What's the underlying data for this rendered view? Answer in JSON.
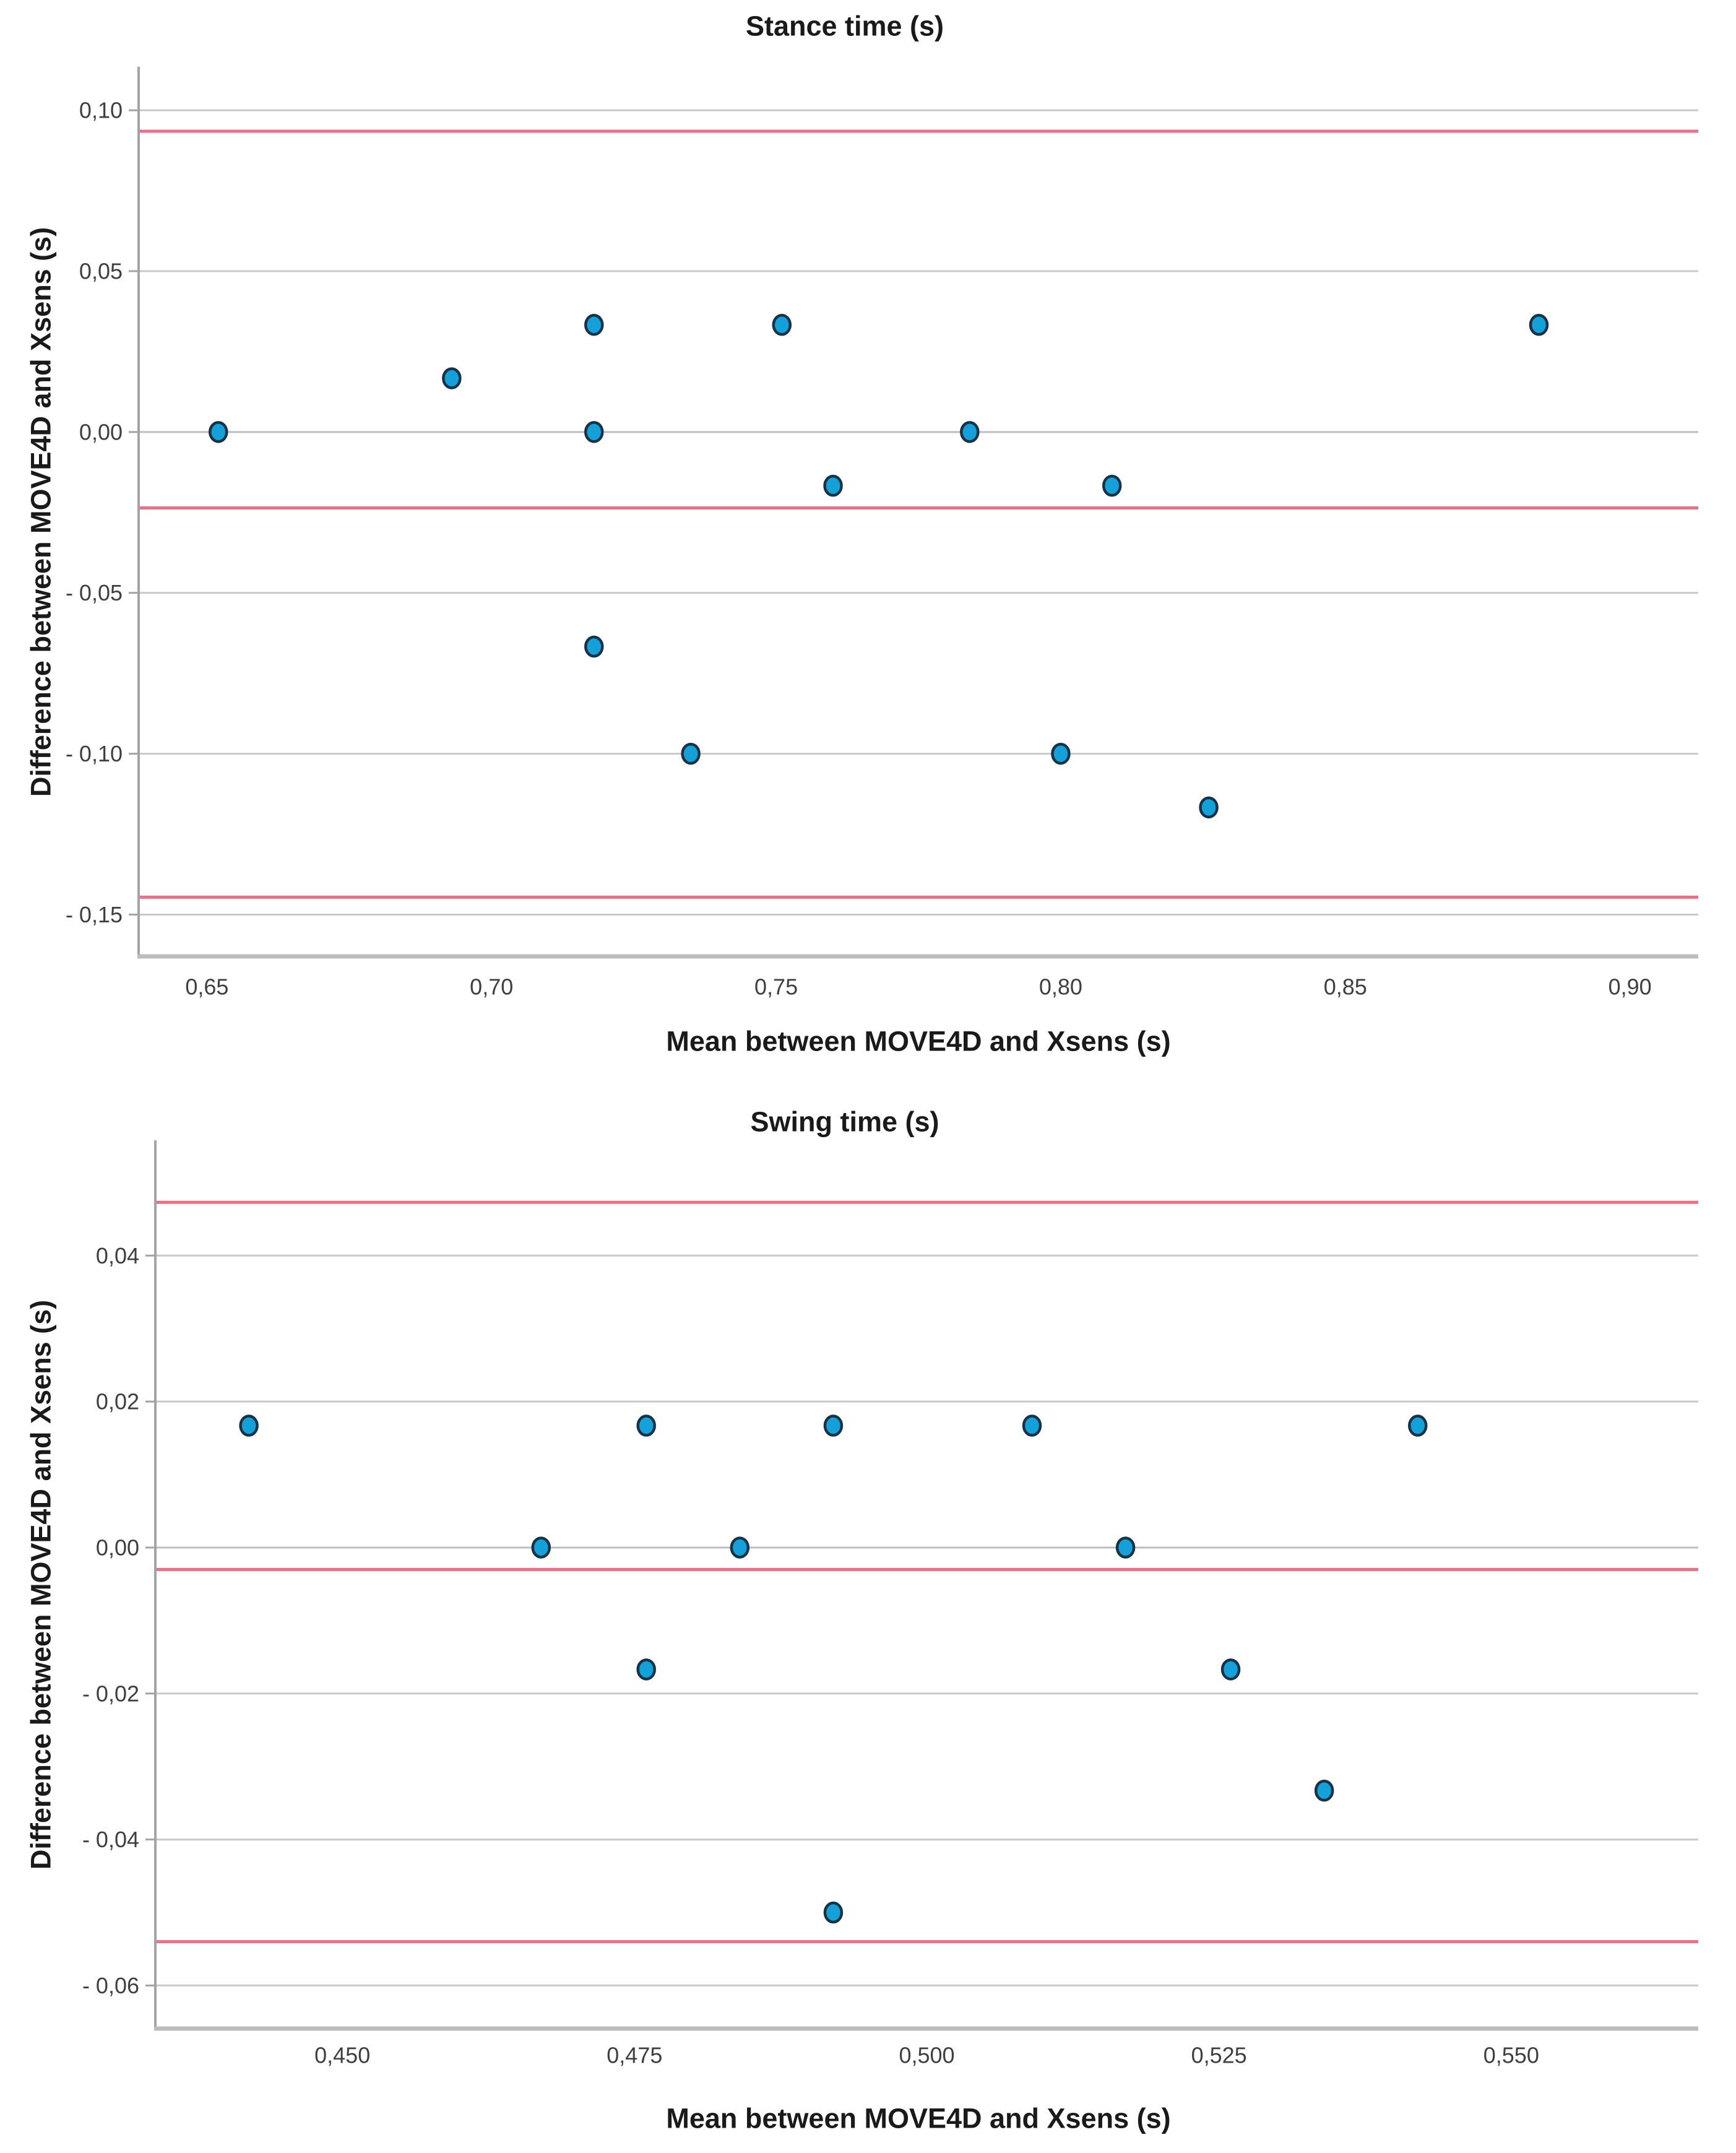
{
  "figure": {
    "description": "Two Bland-Altman scatter plots comparing MOVE4D and Xsens gait parameters",
    "background": "#ffffff",
    "style": {
      "point_fill": "#14A1D9",
      "point_stroke": "#173447",
      "reference_line_color": "#EC6F86",
      "gridline_color": "#C9C9C9",
      "zero_gridline_color": "#BDBDBD",
      "axis_line_color": "#A3A3A3",
      "baseline_color": "#BDBDBD",
      "title_color": "#1A1A1A",
      "tick_label_color": "#3F3F3F"
    }
  },
  "chart_data": [
    {
      "type": "scatter",
      "title": "Stance time (s)",
      "xlabel": "Mean between MOVE4D and Xsens (s)",
      "ylabel": "Difference between MOVE4D and Xsens (s)",
      "grid": "horizontal-only",
      "legend": "none",
      "xlim": [
        0.638,
        0.912
      ],
      "ylim": [
        -0.163,
        0.1135
      ],
      "x_ticks": [
        {
          "v": 0.65,
          "label": "0,65"
        },
        {
          "v": 0.7,
          "label": "0,70"
        },
        {
          "v": 0.75,
          "label": "0,75"
        },
        {
          "v": 0.8,
          "label": "0,80"
        },
        {
          "v": 0.85,
          "label": "0,85"
        },
        {
          "v": 0.9,
          "label": "0,90"
        }
      ],
      "y_ticks": [
        {
          "v": 0.1,
          "label": "0,10"
        },
        {
          "v": 0.05,
          "label": "0,05"
        },
        {
          "v": 0.0,
          "label": "0,00"
        },
        {
          "v": -0.05,
          "label": "- 0,05"
        },
        {
          "v": -0.1,
          "label": "- 0,10"
        },
        {
          "v": -0.15,
          "label": "- 0,15"
        }
      ],
      "reference_lines": {
        "upper_loa": 0.0935,
        "mean_bias": -0.0236,
        "lower_loa": -0.1446
      },
      "points": [
        [
          0.652,
          0.0
        ],
        [
          0.693,
          0.0167
        ],
        [
          0.718,
          0.0333
        ],
        [
          0.718,
          0.0
        ],
        [
          0.718,
          -0.0667
        ],
        [
          0.735,
          -0.1
        ],
        [
          0.751,
          0.0333
        ],
        [
          0.76,
          -0.0167
        ],
        [
          0.784,
          0.0
        ],
        [
          0.8,
          -0.1
        ],
        [
          0.809,
          -0.0167
        ],
        [
          0.826,
          -0.1167
        ],
        [
          0.884,
          0.0333
        ]
      ]
    },
    {
      "type": "scatter",
      "title": "Swing time (s)",
      "xlabel": "Mean between MOVE4D and Xsens (s)",
      "ylabel": "Difference between MOVE4D and Xsens (s)",
      "grid": "horizontal-only",
      "legend": "none",
      "xlim": [
        0.434,
        0.566
      ],
      "ylim": [
        -0.0659,
        0.0558
      ],
      "x_ticks": [
        {
          "v": 0.45,
          "label": "0,450"
        },
        {
          "v": 0.475,
          "label": "0,475"
        },
        {
          "v": 0.5,
          "label": "0,500"
        },
        {
          "v": 0.525,
          "label": "0,525"
        },
        {
          "v": 0.55,
          "label": "0,550"
        }
      ],
      "y_ticks": [
        {
          "v": 0.04,
          "label": "0,04"
        },
        {
          "v": 0.02,
          "label": "0,02"
        },
        {
          "v": 0.0,
          "label": "0,00"
        },
        {
          "v": -0.02,
          "label": "- 0,02"
        },
        {
          "v": -0.04,
          "label": "- 0,04"
        },
        {
          "v": -0.06,
          "label": "- 0,06"
        }
      ],
      "reference_lines": {
        "upper_loa": 0.0473,
        "mean_bias": -0.003,
        "lower_loa": -0.054
      },
      "points": [
        [
          0.442,
          0.0167
        ],
        [
          0.467,
          0.0
        ],
        [
          0.476,
          0.0167
        ],
        [
          0.476,
          -0.0167
        ],
        [
          0.484,
          0.0
        ],
        [
          0.492,
          0.0167
        ],
        [
          0.492,
          -0.05
        ],
        [
          0.509,
          0.0167
        ],
        [
          0.517,
          0.0
        ],
        [
          0.526,
          -0.0167
        ],
        [
          0.534,
          -0.0333
        ],
        [
          0.542,
          0.0167
        ]
      ]
    }
  ]
}
